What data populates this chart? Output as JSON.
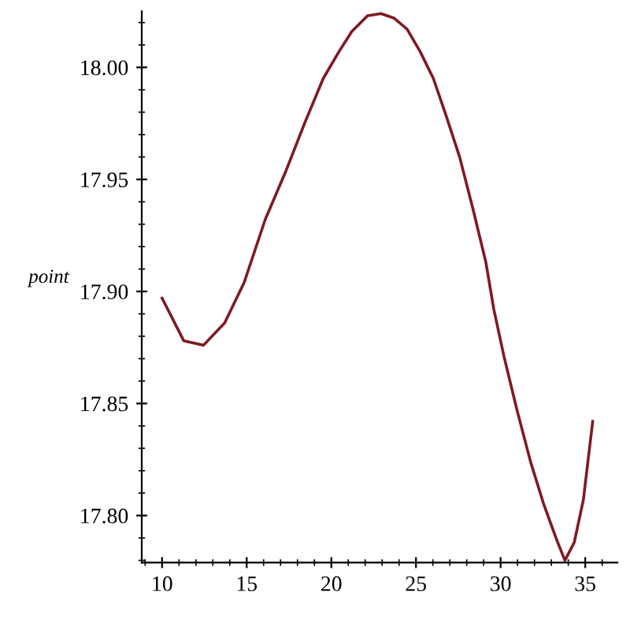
{
  "chart_data": {
    "type": "line",
    "ylabel": "point",
    "x": [
      10,
      11.28,
      12.45,
      13.7,
      14.85,
      16.09,
      17.33,
      18.42,
      19.52,
      20.45,
      21.21,
      22.14,
      22.93,
      23.7,
      24.48,
      25.25,
      26.03,
      26.8,
      27.58,
      28.36,
      29.13,
      29.6,
      30.2,
      30.97,
      31.77,
      32.55,
      33.32,
      33.8,
      34.35,
      34.89,
      35.44
    ],
    "series": [
      {
        "color": "#7f1a22",
        "values": [
          17.897,
          17.878,
          17.876,
          17.886,
          17.904,
          17.932,
          17.954,
          17.975,
          17.995,
          18.007,
          18.016,
          18.023,
          18.024,
          18.022,
          18.017,
          18.007,
          17.995,
          17.978,
          17.96,
          17.937,
          17.913,
          17.892,
          17.871,
          17.847,
          17.824,
          17.805,
          17.789,
          17.78,
          17.788,
          17.807,
          17.842
        ]
      }
    ],
    "xlim": [
      8.8,
      36.9
    ],
    "ylim": [
      17.779,
      18.025
    ],
    "xticks": [
      10,
      15,
      20,
      25,
      30,
      35
    ],
    "yticks": [
      {
        "value": 17.8,
        "label": "17.80"
      },
      {
        "value": 17.85,
        "label": "17.85"
      },
      {
        "value": 17.9,
        "label": "17.90"
      },
      {
        "value": 17.95,
        "label": "17.95"
      },
      {
        "value": 18.0,
        "label": "18.00"
      }
    ],
    "grid": false,
    "line_style": "solid",
    "marker": "none"
  }
}
